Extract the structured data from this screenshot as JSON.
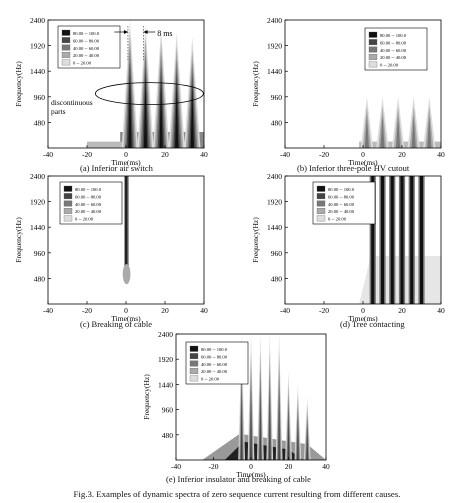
{
  "figure_caption": "Fig.3.   Examples of dynamic spectra of zero sequence current resulting from different causes.",
  "legend": [
    "80.00 -- 100.0",
    "60.00 -- 80.00",
    "40.00 -- 60.00",
    "20.00 -- 40.00",
    "0 -- 20.00"
  ],
  "legend_colors": [
    "#111111",
    "#444444",
    "#777777",
    "#aaaaaa",
    "#dddddd"
  ],
  "ylabel": "Frequency(Hz)",
  "xlabel": "Time(ms)",
  "y_ticks": [
    "2400",
    "1920",
    "1440",
    "960",
    "480"
  ],
  "x_ticks": [
    "-40",
    "-20",
    "0",
    "20",
    "40"
  ],
  "annotations": {
    "period": "8 ms",
    "discontinuous": [
      "discontinuous",
      "parts"
    ]
  },
  "chart_data": [
    {
      "type": "heatmap",
      "caption": "(a) Inferior air switch",
      "xlim": [
        -40,
        40
      ],
      "ylim": [
        0,
        2400
      ],
      "onset_ms": 0,
      "spikes_ms": [
        0,
        8,
        16,
        24,
        32
      ]
    },
    {
      "type": "heatmap",
      "caption": "(b) Inferior three-pole HV cutout",
      "xlim": [
        -40,
        40
      ],
      "ylim": [
        0,
        2400
      ],
      "onset_ms": 0,
      "spikes_ms": [
        0,
        8,
        16,
        24,
        32
      ]
    },
    {
      "type": "heatmap",
      "caption": "(c) Breaking of cable",
      "xlim": [
        -40,
        40
      ],
      "ylim": [
        0,
        2400
      ],
      "onset_ms": 0,
      "spikes_ms": [
        0
      ]
    },
    {
      "type": "heatmap",
      "caption": "(d) Tree contacting",
      "xlim": [
        -40,
        40
      ],
      "ylim": [
        0,
        2400
      ],
      "onset_ms": 0,
      "spikes_ms": [
        5,
        10,
        15,
        20,
        25,
        30
      ]
    },
    {
      "type": "heatmap",
      "caption": "(e) Inferior insulator and breaking of cable",
      "xlim": [
        -40,
        40
      ],
      "ylim": [
        0,
        2400
      ],
      "onset_ms": -5,
      "spikes_ms": [
        -5,
        0,
        5,
        10,
        15,
        20,
        25,
        30
      ]
    }
  ]
}
